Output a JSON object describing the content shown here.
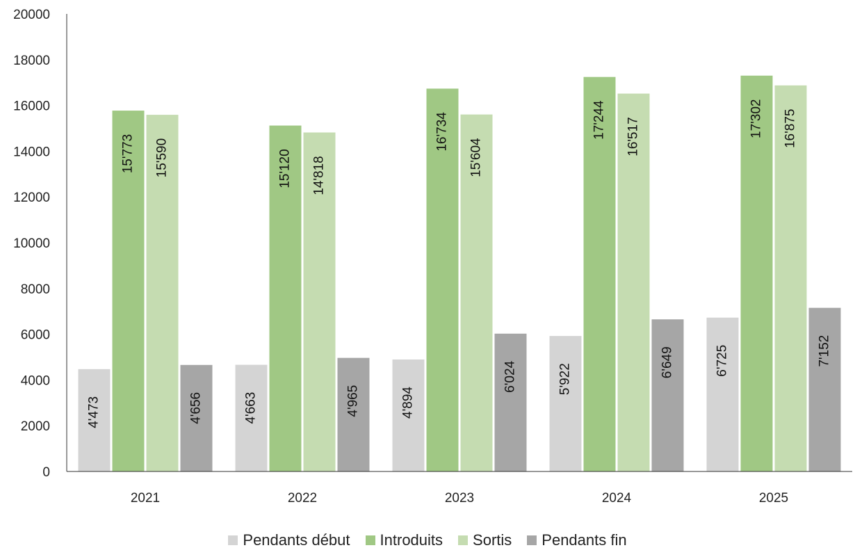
{
  "chart_data": {
    "type": "bar",
    "categories": [
      "2021",
      "2022",
      "2023",
      "2024",
      "2025"
    ],
    "series": [
      {
        "name": "Pendants début",
        "color": "#d4d4d4",
        "values": [
          4473,
          4663,
          4894,
          5922,
          6725
        ],
        "labels": [
          "4'473",
          "4'663",
          "4'894",
          "5'922",
          "6'725"
        ]
      },
      {
        "name": "Introduits",
        "color": "#a0c884",
        "values": [
          15773,
          15120,
          16734,
          17244,
          17302
        ],
        "labels": [
          "15'773",
          "15'120",
          "16'734",
          "17'244",
          "17'302"
        ]
      },
      {
        "name": "Sortis",
        "color": "#c5dcb1",
        "values": [
          15590,
          14818,
          15604,
          16517,
          16875
        ],
        "labels": [
          "15'590",
          "14'818",
          "15'604",
          "16'517",
          "16'875"
        ]
      },
      {
        "name": "Pendants fin",
        "color": "#a6a6a6",
        "values": [
          4656,
          4965,
          6024,
          6649,
          7152
        ],
        "labels": [
          "4'656",
          "4'965",
          "6'024",
          "6'649",
          "7'152"
        ]
      }
    ],
    "y_ticks": [
      "0",
      "2000",
      "4000",
      "6000",
      "8000",
      "10000",
      "12000",
      "14000",
      "16000",
      "18000",
      "20000"
    ],
    "ylim": [
      0,
      20000
    ],
    "grid": false,
    "legend_position": "bottom-center",
    "title": "",
    "xlabel": "",
    "ylabel": ""
  }
}
